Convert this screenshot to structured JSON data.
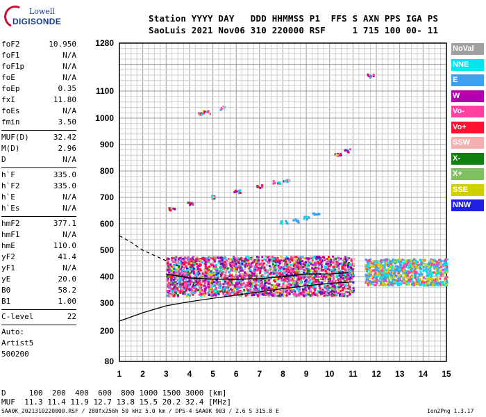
{
  "logo": {
    "top": "Lowell",
    "main": "DIGISONDE"
  },
  "header": {
    "line1": "Station YYYY DAY   DDD HHMMSS P1  FFS S AXN PPS IGA PS",
    "line2": "SaoLuis 2021 Nov06 310 220000 RSF     1 715 100 00- 11"
  },
  "params": {
    "group1": [
      {
        "name": "foF2",
        "value": "10.950"
      },
      {
        "name": "foF1",
        "value": "N/A"
      },
      {
        "name": "foF1p",
        "value": "N/A"
      },
      {
        "name": "foE",
        "value": "N/A"
      },
      {
        "name": "foEp",
        "value": "0.35"
      },
      {
        "name": "fxI",
        "value": "11.80"
      },
      {
        "name": "foEs",
        "value": "N/A"
      },
      {
        "name": "fmin",
        "value": "3.50"
      }
    ],
    "group2": [
      {
        "name": "MUF(D)",
        "value": "32.42"
      },
      {
        "name": "M(D)",
        "value": "2.96"
      },
      {
        "name": "D",
        "value": "N/A"
      }
    ],
    "group3": [
      {
        "name": "h`F",
        "value": "335.0"
      },
      {
        "name": "h`F2",
        "value": "335.0"
      },
      {
        "name": "h`E",
        "value": "N/A"
      },
      {
        "name": "h`Es",
        "value": "N/A"
      }
    ],
    "group4": [
      {
        "name": "hmF2",
        "value": "377.1"
      },
      {
        "name": "hmF1",
        "value": "N/A"
      },
      {
        "name": "hmE",
        "value": "110.0"
      },
      {
        "name": "yF2",
        "value": "41.4"
      },
      {
        "name": "yF1",
        "value": "N/A"
      },
      {
        "name": "yE",
        "value": "20.0"
      },
      {
        "name": "B0",
        "value": "58.2"
      },
      {
        "name": "B1",
        "value": "1.00"
      }
    ],
    "group5": [
      {
        "name": "C-level",
        "value": "22"
      }
    ],
    "auto": [
      "Auto:",
      "Artist5",
      "500200"
    ]
  },
  "legend": [
    {
      "label": "NoVal",
      "color": "#a0a0a0"
    },
    {
      "label": "NNE",
      "color": "#00e5ee"
    },
    {
      "label": "E",
      "color": "#3da0f0"
    },
    {
      "label": "W",
      "color": "#b000b0"
    },
    {
      "label": "Vo-",
      "color": "#ff40a0"
    },
    {
      "label": "Vo+",
      "color": "#ff1030"
    },
    {
      "label": "SSW",
      "color": "#f4b0b0"
    },
    {
      "label": "X-",
      "color": "#108010"
    },
    {
      "label": "X+",
      "color": "#80c060"
    },
    {
      "label": "SSE",
      "color": "#d0d000"
    },
    {
      "label": "NNW",
      "color": "#2020e0"
    }
  ],
  "footer": {
    "distance_line": "D     100  200  400  600  800 1000 1500 3000 [km]",
    "muf_line": "MUF  11.3 11.4 11.9 12.7 13.8 15.5 20.2 32.4 [MHz]",
    "filename": "SAA0K_2021310220000.RSF / 280fx256h 50 kHz 5.0 km / DPS-4 SAA0K 903 / 2.6 S 315.8 E",
    "version": "Ion2Png 1.3.17"
  },
  "chart_data": {
    "type": "scatter",
    "xlabel": "",
    "ylabel": "",
    "xlim": [
      1,
      15
    ],
    "ylim_nonlinear": [
      80,
      1280
    ],
    "x_ticks": [
      1,
      2,
      3,
      4,
      5,
      6,
      7,
      8,
      9,
      10,
      11,
      12,
      13,
      14,
      15
    ],
    "y_ticks": [
      80,
      200,
      300,
      400,
      500,
      600,
      700,
      800,
      900,
      1000,
      1100,
      1280
    ],
    "grid": true,
    "series": [
      {
        "name": "echo cluster F-layer",
        "x_range": [
          3.0,
          11.0
        ],
        "y_range": [
          330,
          480
        ],
        "density": "high"
      },
      {
        "name": "echo cluster upper",
        "x_range": [
          11.5,
          15.0
        ],
        "y_range": [
          370,
          470
        ],
        "density": "high"
      },
      {
        "name": "multi-hop trace",
        "points": [
          [
            3.2,
            660
          ],
          [
            4.0,
            680
          ],
          [
            5.0,
            705
          ],
          [
            6.0,
            725
          ],
          [
            7.0,
            745
          ],
          [
            7.7,
            760
          ],
          [
            8.1,
            765
          ]
        ]
      },
      {
        "name": "oblique E echoes",
        "points": [
          [
            8.0,
            610
          ],
          [
            8.5,
            615
          ],
          [
            9.0,
            625
          ],
          [
            9.4,
            640
          ]
        ]
      },
      {
        "name": "high echoes",
        "points": [
          [
            4.5,
            1020
          ],
          [
            4.7,
            1025
          ],
          [
            5.4,
            1040
          ],
          [
            10.3,
            865
          ],
          [
            10.7,
            880
          ],
          [
            11.7,
            1160
          ]
        ]
      },
      {
        "name": "profile curve",
        "points": [
          [
            1.0,
            235
          ],
          [
            2.0,
            265
          ],
          [
            3.0,
            290
          ],
          [
            4.0,
            305
          ],
          [
            5.0,
            318
          ],
          [
            6.0,
            330
          ],
          [
            7.0,
            342
          ],
          [
            8.0,
            355
          ],
          [
            9.0,
            365
          ],
          [
            10.0,
            375
          ],
          [
            11.0,
            380
          ]
        ]
      },
      {
        "name": "trace curve",
        "points": [
          [
            3.0,
            410
          ],
          [
            4.0,
            395
          ],
          [
            5.0,
            390
          ],
          [
            6.0,
            390
          ],
          [
            7.0,
            392
          ],
          [
            8.0,
            400
          ],
          [
            9.0,
            410
          ],
          [
            10.0,
            410
          ],
          [
            10.8,
            415
          ]
        ]
      },
      {
        "name": "dashed extrapolation",
        "points": [
          [
            1.0,
            555
          ],
          [
            1.5,
            530
          ],
          [
            2.0,
            500
          ],
          [
            2.5,
            480
          ],
          [
            3.0,
            460
          ]
        ]
      }
    ]
  }
}
